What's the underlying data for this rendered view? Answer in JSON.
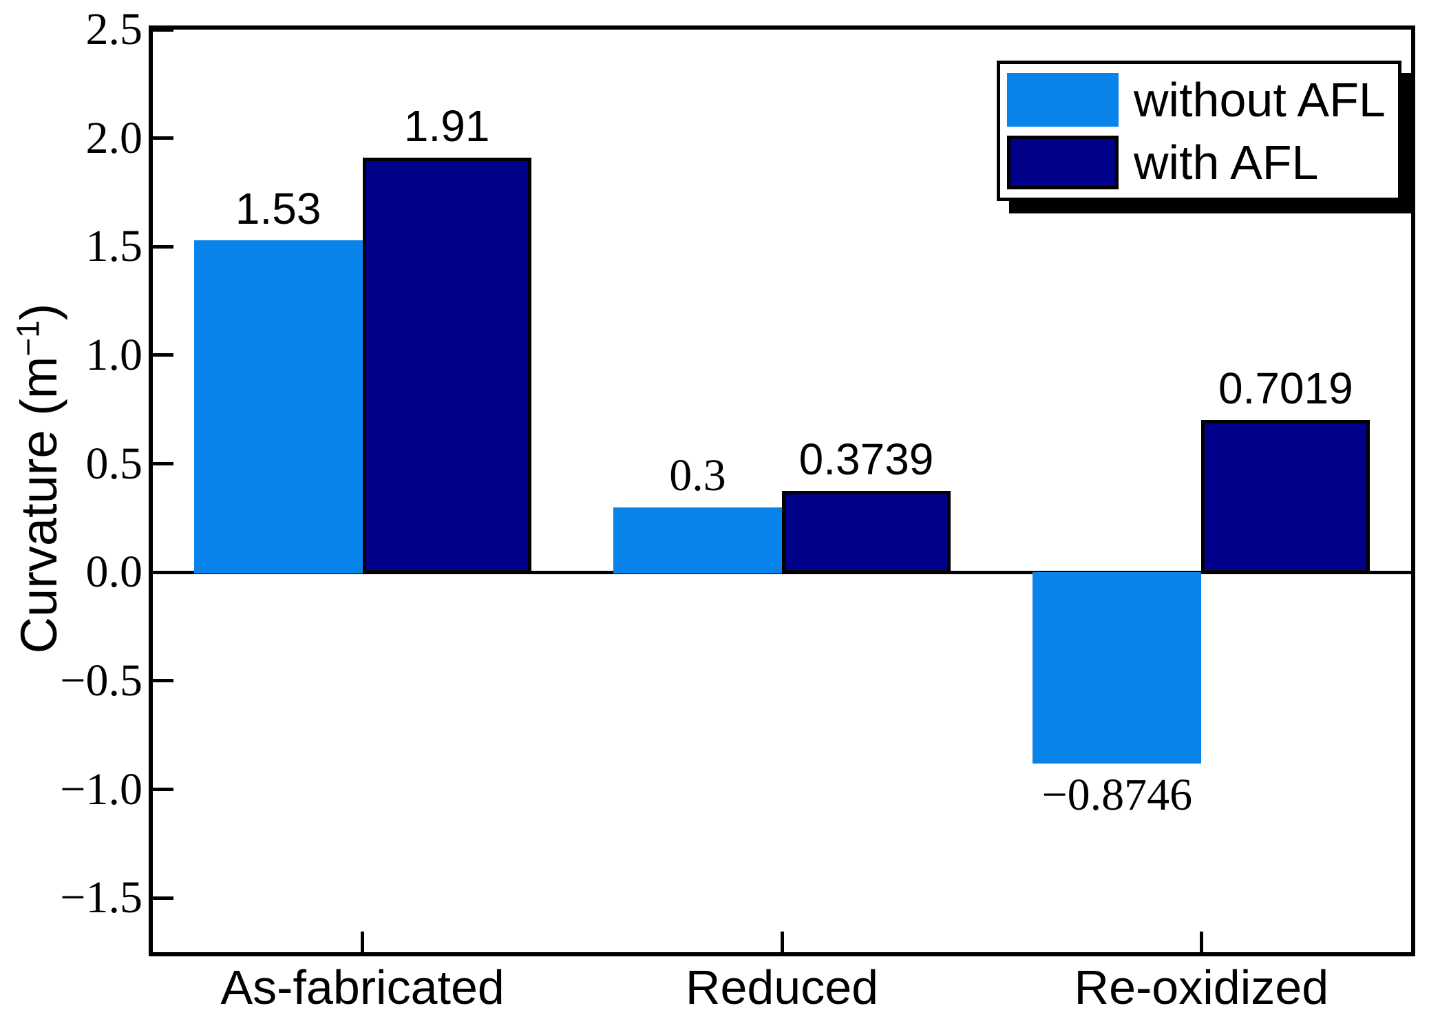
{
  "figure": {
    "background": "#FFFFFF",
    "axis_color": "#000000"
  },
  "chart_data": {
    "type": "bar",
    "title": "",
    "xlabel": "",
    "ylabel": {
      "prefix": "Curvature (m",
      "superscript": "−1",
      "suffix": ")"
    },
    "categories": [
      "As-fabricated",
      "Reduced",
      "Re-oxidized"
    ],
    "series": [
      {
        "name": "without AFL",
        "color": "#0883EA",
        "border": false,
        "values": [
          1.53,
          0.3,
          -0.8746
        ],
        "value_labels": [
          {
            "text": "1.53",
            "serif": false
          },
          {
            "text": "0.3",
            "serif": true
          },
          {
            "text": "−0.8746",
            "serif": true
          }
        ]
      },
      {
        "name": "with AFL",
        "color": "#00008B",
        "border": true,
        "values": [
          1.91,
          0.3739,
          0.7019
        ],
        "value_labels": [
          {
            "text": "1.91",
            "serif": false
          },
          {
            "text": "0.3739",
            "serif": false
          },
          {
            "text": "0.7019",
            "serif": false
          }
        ]
      }
    ],
    "ylim": [
      -1.75,
      2.5
    ],
    "yticks": [
      {
        "value": 2.5,
        "label": "2.5"
      },
      {
        "value": 2.0,
        "label": "2.0"
      },
      {
        "value": 1.5,
        "label": "1.5"
      },
      {
        "value": 1.0,
        "label": "1.0"
      },
      {
        "value": 0.5,
        "label": "0.5"
      },
      {
        "value": 0.0,
        "label": "0.0"
      },
      {
        "value": -0.5,
        "label": "−0.5"
      },
      {
        "value": -1.0,
        "label": "−1.0"
      },
      {
        "value": -1.5,
        "label": "−1.5"
      }
    ],
    "grid": false,
    "legend_position": "top-right"
  }
}
